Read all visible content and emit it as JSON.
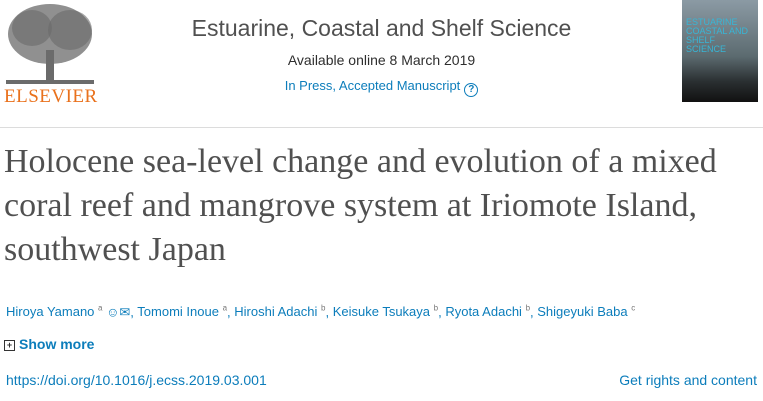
{
  "publisher": {
    "name": "ELSEVIER",
    "brand_color": "#e9711c"
  },
  "journal": {
    "title": "Estuarine, Coastal and Shelf Science",
    "available": "Available online 8 March 2019",
    "status": "In Press, Accepted Manuscript",
    "cover_title": "ESTUARINE COASTAL AND SHELF SCIENCE"
  },
  "article": {
    "title": "Holocene sea-level change and evolution of a mixed coral reef and mangrove system at Iriomote Island, southwest Japan",
    "authors": [
      {
        "name": "Hiroya Yamano",
        "aff": "a"
      },
      {
        "name": "Tomomi Inoue",
        "aff": "a"
      },
      {
        "name": "Hiroshi Adachi",
        "aff": "b"
      },
      {
        "name": "Keisuke Tsukaya",
        "aff": "b"
      },
      {
        "name": "Ryota Adachi",
        "aff": "b"
      },
      {
        "name": "Shigeyuki Baba",
        "aff": "c"
      }
    ],
    "show_more": "Show more",
    "doi": "https://doi.org/10.1016/j.ecss.2019.03.001",
    "rights": "Get rights and content"
  },
  "icons": [
    "elsevier-tree-logo",
    "help-icon",
    "person-icon",
    "envelope-icon",
    "plus-box-icon"
  ],
  "link_color": "#0c7dbb"
}
